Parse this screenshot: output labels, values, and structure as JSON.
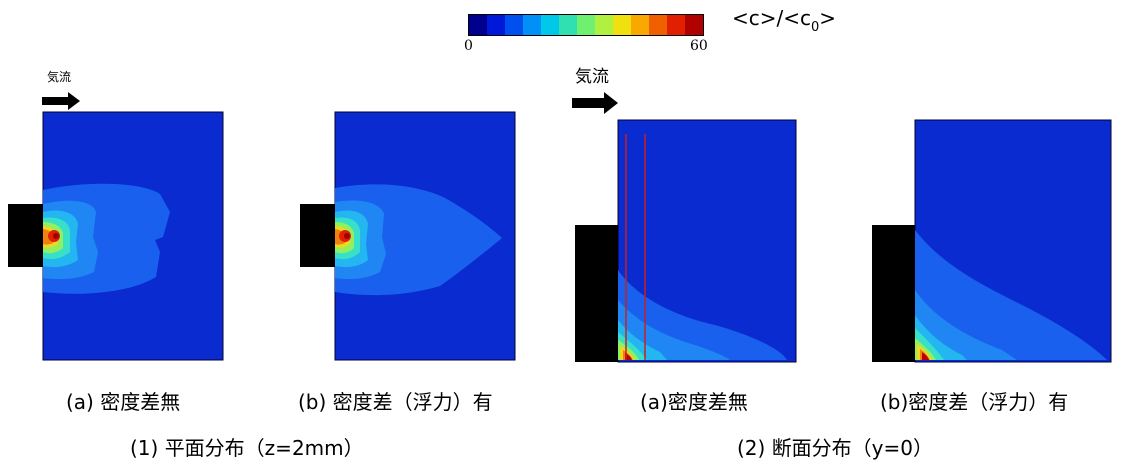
{
  "colorbar": {
    "label_main": "<c>/<c",
    "label_sub": "0",
    "label_end": ">",
    "min_label": "0",
    "max_label": "60",
    "colors": [
      "#00008f",
      "#0018d8",
      "#0050f0",
      "#0090f8",
      "#00c8e8",
      "#30e0b0",
      "#70f070",
      "#b0f040",
      "#f0e010",
      "#f8a800",
      "#f06000",
      "#e02000",
      "#b00000"
    ]
  },
  "flow_label": "気流",
  "panels": {
    "plane_a_caption": "(a)  密度差無",
    "plane_b_caption": "(b)  密度差（浮力）有",
    "section_a_caption": "(a)密度差無",
    "section_b_caption": "(b)密度差（浮力）有"
  },
  "groups": {
    "plane_title": "(1)  平面分布（z=2mm）",
    "section_title": "(2)  断面分布（y=0）"
  }
}
